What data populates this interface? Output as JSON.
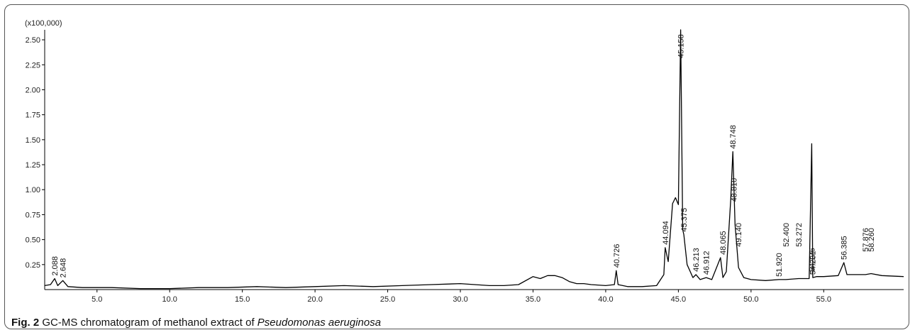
{
  "caption": {
    "fig": "Fig. 2",
    "text_before": " GC-MS chromatogram of methanol extract of ",
    "species": "Pseudomonas aeruginosa"
  },
  "chart_data": {
    "type": "line",
    "title": "",
    "xlabel": "",
    "ylabel": "",
    "y_multiplier_label": "(x100,000)",
    "xlim": [
      1.4,
      60.5
    ],
    "ylim": [
      0,
      2.6
    ],
    "xticks": [
      5.0,
      10.0,
      15.0,
      20.0,
      25.0,
      30.0,
      35.0,
      40.0,
      45.0,
      50.0,
      55.0
    ],
    "xtick_labels": [
      "5.0",
      "10.0",
      "15.0",
      "20.0",
      "25.0",
      "30.0",
      "35.0",
      "40.0",
      "45.0",
      "50.0",
      "55.0"
    ],
    "yticks": [
      0.25,
      0.5,
      0.75,
      1.0,
      1.25,
      1.5,
      1.75,
      2.0,
      2.25,
      2.5
    ],
    "ytick_labels": [
      "0.25",
      "0.50",
      "0.75",
      "1.00",
      "1.25",
      "1.50",
      "1.75",
      "2.00",
      "2.25",
      "2.50"
    ],
    "grid": false,
    "series": [
      {
        "x": [
          1.4,
          1.8,
          2.088,
          2.3,
          2.648,
          3.0,
          4.0,
          6.0,
          8.0,
          10.0,
          12.0,
          14.0,
          16.0,
          18.0,
          20.0,
          22.0,
          24.0,
          26.0,
          28.0,
          30.0,
          31.0,
          32.0,
          33.0,
          34.0,
          35.0,
          35.5,
          36.0,
          36.5,
          37.0,
          37.5,
          38.0,
          38.5,
          39.0,
          40.0,
          40.6,
          40.726,
          40.85,
          41.5,
          42.5,
          43.5,
          44.0,
          44.094,
          44.3,
          44.6,
          44.8,
          45.0,
          45.158,
          45.3,
          45.375,
          45.6,
          46.0,
          46.213,
          46.5,
          46.912,
          47.3,
          47.9,
          48.065,
          48.3,
          48.6,
          48.748,
          48.9,
          49.14,
          49.5,
          50.0,
          51.0,
          51.92,
          52.4,
          53.272,
          54.0,
          54.176,
          54.25,
          54.5,
          55.0,
          56.0,
          56.385,
          56.6,
          57.0,
          57.876,
          58.26,
          59.0,
          60.5
        ],
        "y": [
          0.04,
          0.05,
          0.11,
          0.04,
          0.09,
          0.03,
          0.02,
          0.02,
          0.01,
          0.01,
          0.02,
          0.02,
          0.03,
          0.02,
          0.03,
          0.04,
          0.03,
          0.04,
          0.05,
          0.06,
          0.05,
          0.04,
          0.04,
          0.05,
          0.13,
          0.11,
          0.14,
          0.14,
          0.12,
          0.08,
          0.06,
          0.06,
          0.05,
          0.04,
          0.05,
          0.19,
          0.05,
          0.03,
          0.03,
          0.04,
          0.15,
          0.42,
          0.28,
          0.86,
          0.92,
          0.85,
          2.6,
          0.6,
          0.55,
          0.25,
          0.12,
          0.15,
          0.1,
          0.12,
          0.1,
          0.32,
          0.12,
          0.18,
          0.9,
          1.38,
          0.65,
          0.22,
          0.12,
          0.1,
          0.09,
          0.1,
          0.1,
          0.11,
          0.11,
          1.46,
          0.12,
          0.13,
          0.13,
          0.14,
          0.27,
          0.15,
          0.15,
          0.15,
          0.16,
          0.14,
          0.13
        ]
      }
    ],
    "peak_labels": [
      {
        "x": 2.088,
        "y": 0.11,
        "text": "2.088",
        "color": "#111111"
      },
      {
        "x": 2.648,
        "y": 0.09,
        "text": "2.648",
        "color": "#111111"
      },
      {
        "x": 40.726,
        "y": 0.19,
        "text": "40.726",
        "color": "#111111"
      },
      {
        "x": 44.094,
        "y": 0.42,
        "text": "44.094",
        "color": "#111111"
      },
      {
        "x": 45.158,
        "y": 2.6,
        "text": "45.158",
        "color": "#111111"
      },
      {
        "x": 45.375,
        "y": 0.55,
        "text": "45.375",
        "color": "#111111"
      },
      {
        "x": 46.213,
        "y": 0.15,
        "text": "46.213",
        "color": "#111111"
      },
      {
        "x": 46.912,
        "y": 0.12,
        "text": "46.912",
        "color": "#111111"
      },
      {
        "x": 48.065,
        "y": 0.32,
        "text": "48.065",
        "color": "#111111"
      },
      {
        "x": 48.748,
        "y": 1.38,
        "text": "48.748",
        "color": "#111111"
      },
      {
        "x": 48.81,
        "y": 0.85,
        "text": "48.810",
        "color": "#111111"
      },
      {
        "x": 49.14,
        "y": 0.4,
        "text": "49.140",
        "color": "#111111"
      },
      {
        "x": 51.92,
        "y": 0.1,
        "text": "51.920",
        "color": "#2233aa"
      },
      {
        "x": 52.4,
        "y": 0.4,
        "text": "52.400",
        "color": "#2233aa"
      },
      {
        "x": 53.272,
        "y": 0.4,
        "text": "53.272",
        "color": "#111111"
      },
      {
        "x": 54.176,
        "y": 0.15,
        "text": "54.176",
        "color": "#111111"
      },
      {
        "x": 54.231,
        "y": 0.12,
        "text": "54.231",
        "color": "#111111"
      },
      {
        "x": 56.385,
        "y": 0.27,
        "text": "56.385",
        "color": "#111111"
      },
      {
        "x": 57.876,
        "y": 0.35,
        "text": "57.876",
        "color": "#111111"
      },
      {
        "x": 58.26,
        "y": 0.35,
        "text": "58.260",
        "color": "#111111"
      }
    ],
    "colors": {
      "line": "#000000",
      "axis": "#000000",
      "minor_label": "#2233aa"
    }
  }
}
